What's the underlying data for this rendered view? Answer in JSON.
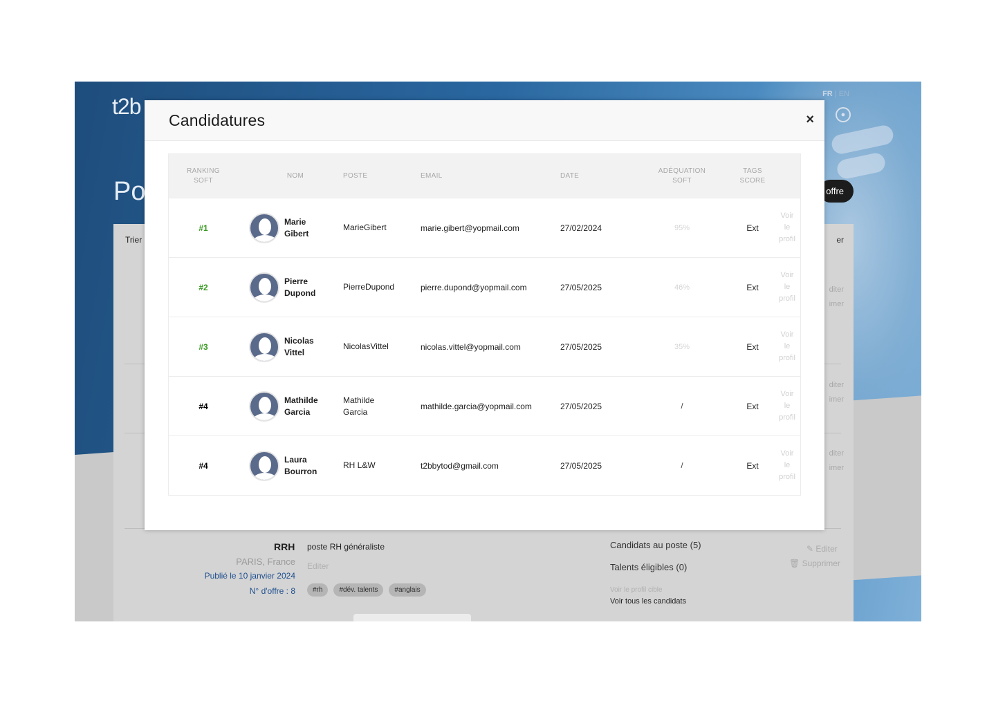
{
  "background": {
    "logo": "t2b",
    "lang_fr": "FR",
    "lang_sep": " | ",
    "lang_en": "EN",
    "page_title": "Po",
    "offer_button": "offre",
    "sort_label": "Trier",
    "side_ghost": "er",
    "side_edit": [
      "diter",
      "diter",
      "diter"
    ],
    "side_delete": [
      "imer",
      "imer",
      "imer"
    ],
    "job": {
      "title": "RRH",
      "description": "poste RH généraliste",
      "location": "PARIS, France",
      "edit": "Editer",
      "published": "Publié le 10 janvier 2024",
      "offer_number": "N° d'offre : 8",
      "tags": [
        "#rh",
        "#dév. talents",
        "#anglais"
      ],
      "candidates": "Candidats au poste (5)",
      "talents": "Talents éligibles (0)",
      "view_target": "Voir le profil cible",
      "view_all": "Voir tous les candidats",
      "edit_action": "Editer",
      "delete_action": "Supprimer"
    }
  },
  "modal": {
    "title": "Candidatures",
    "close": "×",
    "headers": {
      "ranking_1": "RANKING",
      "ranking_2": "SOFT",
      "nom": "NOM",
      "poste": "POSTE",
      "email": "EMAIL",
      "date": "DATE",
      "adequation_1": "ADÉQUATION",
      "adequation_2": "SOFT",
      "tags_1": "TAGS",
      "tags_2": "SCORE"
    },
    "rows": [
      {
        "rank": "#1",
        "first": "Marie",
        "last": "Gibert",
        "poste": "MarieGibert",
        "poste2": "",
        "email": "marie.gibert@yopmail.com",
        "date": "27/02/2024",
        "soft": "95%",
        "tags": "Ext",
        "v1": "Voir",
        "v2": "le",
        "v3": "profil"
      },
      {
        "rank": "#2",
        "first": "Pierre",
        "last": "Dupond",
        "poste": "PierreDupond",
        "poste2": "",
        "email": "pierre.dupond@yopmail.com",
        "date": "27/05/2025",
        "soft": "46%",
        "tags": "Ext",
        "v1": "Voir",
        "v2": "le",
        "v3": "profil"
      },
      {
        "rank": "#3",
        "first": "Nicolas",
        "last": "Vittel",
        "poste": "NicolasVittel",
        "poste2": "",
        "email": "nicolas.vittel@yopmail.com",
        "date": "27/05/2025",
        "soft": "35%",
        "tags": "Ext",
        "v1": "Voir",
        "v2": "le",
        "v3": "profil"
      },
      {
        "rank": "#4",
        "first": "Mathilde",
        "last": "Garcia",
        "poste": "Mathilde",
        "poste2": "Garcia",
        "email": "mathilde.garcia@yopmail.com",
        "date": "27/05/2025",
        "soft": "/",
        "tags": "Ext",
        "v1": "Voir",
        "v2": "le",
        "v3": "profil"
      },
      {
        "rank": "#4",
        "first": "Laura",
        "last": "Bourron",
        "poste": "RH L&W",
        "poste2": "",
        "email": "t2bbytod@gmail.com",
        "date": "27/05/2025",
        "soft": "/",
        "tags": "Ext",
        "v1": "Voir",
        "v2": "le",
        "v3": "profil"
      }
    ]
  }
}
